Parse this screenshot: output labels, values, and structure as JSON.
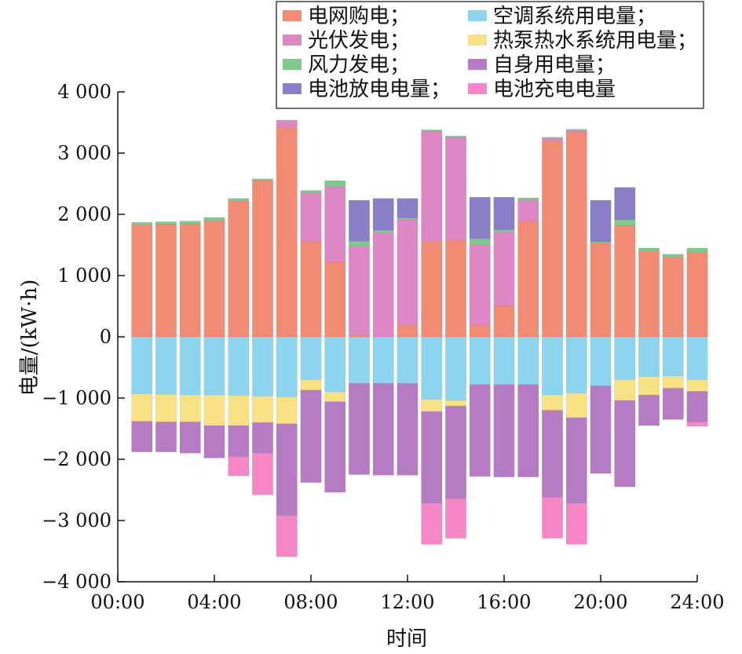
{
  "chart_data": {
    "type": "bar",
    "stacked": true,
    "title": "",
    "xlabel": "时间",
    "ylabel": "电量/(kW·h)",
    "ylim": [
      -4000,
      4000
    ],
    "y_ticks": [
      4000,
      3000,
      2000,
      1000,
      0,
      -1000,
      -2000,
      -3000,
      -4000
    ],
    "y_tick_labels": [
      "4 000",
      "3 000",
      "2 000",
      "1 000",
      "0",
      "−1 000",
      "−2 000",
      "−3 000",
      "−4 000"
    ],
    "xlim": [
      0,
      24
    ],
    "x_ticks": [
      0,
      4,
      8,
      12,
      16,
      20,
      24
    ],
    "x_tick_labels": [
      "00:00",
      "04:00",
      "08:00",
      "12:00",
      "16:00",
      "20:00",
      "24:00"
    ],
    "x": [
      1,
      2,
      3,
      4,
      5,
      6,
      7,
      8,
      9,
      10,
      11,
      12,
      13,
      14,
      15,
      16,
      17,
      18,
      19,
      20,
      21,
      22,
      23,
      24
    ],
    "grid": false,
    "legend_position": "top-right",
    "series": [
      {
        "name": "电网购电；",
        "key": "grid",
        "color": "#f28b74",
        "values": [
          1830,
          1840,
          1840,
          1900,
          2220,
          2560,
          3420,
          1550,
          1230,
          30,
          0,
          190,
          1560,
          1580,
          190,
          500,
          1890,
          3200,
          3340,
          1530,
          1820,
          1400,
          1310,
          1380
        ]
      },
      {
        "name": "光伏发电；",
        "key": "pv",
        "color": "#df86c5",
        "values": [
          0,
          0,
          0,
          0,
          0,
          0,
          120,
          800,
          1220,
          1450,
          1700,
          1720,
          1800,
          1670,
          1320,
          1220,
          350,
          40,
          30,
          0,
          0,
          0,
          0,
          0
        ]
      },
      {
        "name": "风力发电；",
        "key": "wind",
        "color": "#7fc98c",
        "values": [
          40,
          40,
          50,
          50,
          40,
          20,
          0,
          40,
          100,
          80,
          40,
          30,
          20,
          30,
          90,
          30,
          30,
          20,
          20,
          20,
          90,
          50,
          40,
          70
        ]
      },
      {
        "name": "电池放电电量；",
        "key": "discharge",
        "color": "#8a7ec9",
        "values": [
          0,
          0,
          0,
          0,
          0,
          0,
          0,
          0,
          0,
          670,
          520,
          320,
          0,
          0,
          680,
          530,
          0,
          0,
          0,
          680,
          530,
          0,
          0,
          0
        ]
      },
      {
        "name": "空调系统用电量；",
        "key": "ac",
        "color": "#8dd4ee",
        "values": [
          -930,
          -940,
          -950,
          -950,
          -960,
          -970,
          -980,
          -700,
          -900,
          -760,
          -760,
          -760,
          -1020,
          -1040,
          -780,
          -780,
          -780,
          -950,
          -920,
          -800,
          -700,
          -650,
          -640,
          -700
        ]
      },
      {
        "name": "热泵热水系统用电量；",
        "key": "heatpump",
        "color": "#f8e084",
        "values": [
          -450,
          -450,
          -440,
          -500,
          -490,
          -430,
          -440,
          -170,
          -160,
          0,
          0,
          0,
          -200,
          -90,
          0,
          0,
          0,
          -250,
          -400,
          0,
          -340,
          -300,
          -200,
          -190
        ]
      },
      {
        "name": "自身用电量；",
        "key": "self",
        "color": "#b77bc3",
        "values": [
          -500,
          -490,
          -510,
          -530,
          -510,
          -500,
          -1500,
          -1510,
          -1480,
          -1490,
          -1500,
          -1500,
          -1500,
          -1510,
          -1500,
          -1510,
          -1510,
          -1420,
          -1400,
          -1430,
          -1410,
          -500,
          -510,
          -500
        ]
      },
      {
        "name": "电池充电电量",
        "key": "charge",
        "color": "#f587c6",
        "values": [
          0,
          0,
          0,
          0,
          -310,
          -680,
          -670,
          0,
          0,
          0,
          0,
          0,
          -670,
          -650,
          0,
          0,
          0,
          -670,
          -670,
          0,
          0,
          0,
          0,
          -70
        ]
      }
    ]
  }
}
